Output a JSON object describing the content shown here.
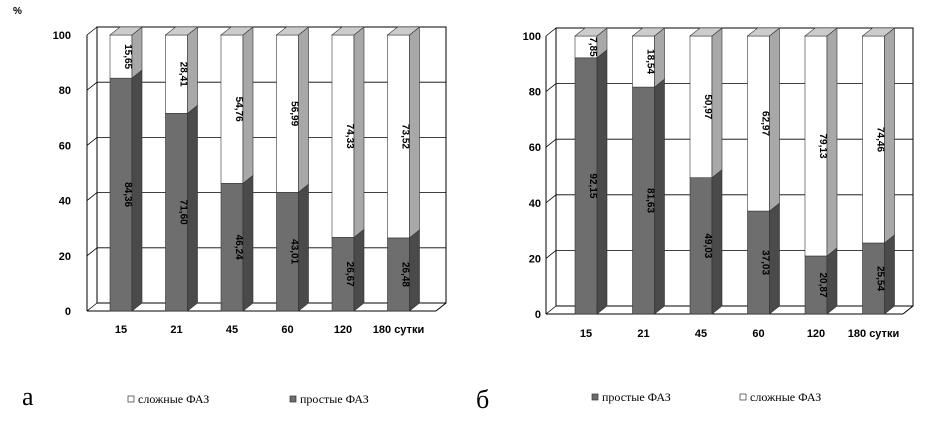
{
  "colors": {
    "simple": "#6e6e6e",
    "simple_side": "#4a4a4a",
    "simple_top": "#8a8a8a",
    "complex": "#ffffff",
    "complex_side": "#a8a8a8",
    "complex_top": "#cccccc",
    "grid": "#000000"
  },
  "chart_data": [
    {
      "type": "bar",
      "stacked": true,
      "panel_label": "а",
      "y_unit": "%",
      "ylim": [
        0,
        100
      ],
      "yticks": [
        "0",
        "20",
        "40",
        "60",
        "80",
        "100"
      ],
      "categories": [
        "15",
        "21",
        "45",
        "60",
        "120",
        "180 сутки"
      ],
      "series": [
        {
          "name": "простые ФАЗ",
          "values": [
            84.36,
            71.6,
            46.24,
            43.01,
            26.67,
            26.48
          ],
          "labels": [
            "84,36",
            "71,60",
            "46,24",
            "43,01",
            "26,67",
            "26,48"
          ]
        },
        {
          "name": "сложные ФАЗ",
          "values": [
            15.65,
            28.41,
            54.76,
            56.99,
            74.33,
            73.52
          ],
          "labels": [
            "15,65",
            "28,41",
            "54,76",
            "56,99",
            "74,33",
            "73,52"
          ]
        }
      ],
      "legend_order": [
        "сложные ФАЗ",
        "простые ФАЗ"
      ],
      "grid": true
    },
    {
      "type": "bar",
      "stacked": true,
      "panel_label": "б",
      "y_unit": "",
      "ylim": [
        0,
        100
      ],
      "yticks": [
        "0",
        "20",
        "40",
        "60",
        "80",
        "100"
      ],
      "categories": [
        "15",
        "21",
        "45",
        "60",
        "120",
        "180 сутки"
      ],
      "series": [
        {
          "name": "простые ФАЗ",
          "values": [
            92.15,
            81.63,
            49.03,
            37.03,
            20.87,
            25.54
          ],
          "labels": [
            "92,15",
            "81,63",
            "49,03",
            "37,03",
            "20,87",
            "25,54"
          ]
        },
        {
          "name": "сложные ФАЗ",
          "values": [
            7.85,
            18.54,
            50.97,
            62.97,
            79.13,
            74.46
          ],
          "labels": [
            "7,85",
            "18,54",
            "50,97",
            "62,97",
            "79,13",
            "74,46"
          ]
        }
      ],
      "legend_order": [
        "простые ФАЗ",
        "сложные ФАЗ"
      ],
      "grid": true
    }
  ]
}
